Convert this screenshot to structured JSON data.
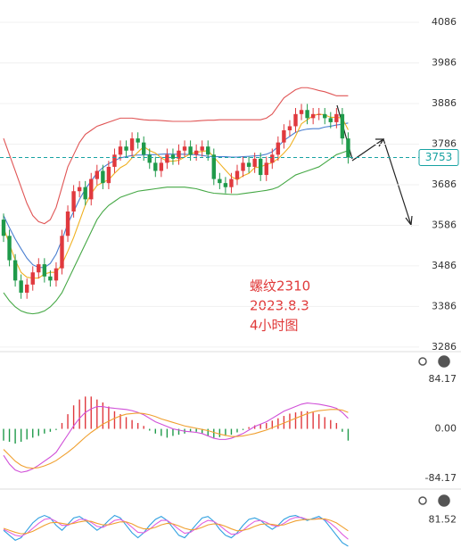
{
  "chart_data": [
    {
      "type": "candlestick",
      "annotations": [
        "螺纹2310",
        "2023.8.3",
        "4小时图"
      ],
      "last_price": 3753,
      "ylim": [
        3277,
        4141
      ],
      "yticks": [
        3286,
        3386,
        3486,
        3586,
        3686,
        3786,
        3886,
        3986,
        4086
      ],
      "grid": true,
      "up_color": "#e0393e",
      "down_color": "#1f9a4a",
      "open": [
        3600,
        3560,
        3500,
        3450,
        3420,
        3440,
        3470,
        3490,
        3460,
        3450,
        3480,
        3560,
        3620,
        3670,
        3680,
        3650,
        3700,
        3720,
        3690,
        3730,
        3760,
        3780,
        3770,
        3800,
        3790,
        3760,
        3740,
        3720,
        3740,
        3760,
        3750,
        3770,
        3780,
        3760,
        3770,
        3780,
        3760,
        3700,
        3690,
        3680,
        3700,
        3720,
        3740,
        3730,
        3750,
        3710,
        3740,
        3760,
        3790,
        3820,
        3830,
        3860,
        3870,
        3850,
        3860,
        3860,
        3850,
        3840,
        3860,
        3800
      ],
      "high": [
        3615,
        3575,
        3515,
        3465,
        3455,
        3485,
        3505,
        3505,
        3475,
        3495,
        3575,
        3635,
        3685,
        3695,
        3695,
        3715,
        3735,
        3735,
        3745,
        3775,
        3795,
        3795,
        3815,
        3815,
        3805,
        3775,
        3755,
        3755,
        3775,
        3775,
        3785,
        3795,
        3795,
        3785,
        3795,
        3795,
        3775,
        3715,
        3705,
        3715,
        3735,
        3755,
        3755,
        3765,
        3765,
        3755,
        3775,
        3805,
        3835,
        3845,
        3875,
        3885,
        3885,
        3875,
        3875,
        3875,
        3865,
        3875,
        3875,
        3815
      ],
      "low": [
        3545,
        3485,
        3435,
        3405,
        3405,
        3425,
        3455,
        3445,
        3435,
        3435,
        3465,
        3545,
        3605,
        3655,
        3635,
        3635,
        3685,
        3675,
        3675,
        3715,
        3745,
        3755,
        3755,
        3775,
        3745,
        3725,
        3705,
        3705,
        3725,
        3735,
        3735,
        3755,
        3745,
        3745,
        3755,
        3745,
        3685,
        3675,
        3665,
        3665,
        3685,
        3705,
        3715,
        3715,
        3695,
        3695,
        3725,
        3745,
        3775,
        3805,
        3815,
        3845,
        3835,
        3835,
        3845,
        3835,
        3825,
        3825,
        3785,
        3738
      ],
      "close": [
        3560,
        3500,
        3450,
        3420,
        3440,
        3470,
        3490,
        3460,
        3450,
        3480,
        3560,
        3620,
        3670,
        3680,
        3650,
        3700,
        3720,
        3690,
        3730,
        3760,
        3780,
        3770,
        3800,
        3790,
        3760,
        3740,
        3720,
        3740,
        3760,
        3750,
        3770,
        3780,
        3760,
        3770,
        3780,
        3760,
        3700,
        3690,
        3680,
        3700,
        3720,
        3740,
        3730,
        3750,
        3710,
        3740,
        3760,
        3790,
        3820,
        3830,
        3860,
        3870,
        3850,
        3860,
        3860,
        3850,
        3840,
        3860,
        3800,
        3753
      ],
      "series": [
        {
          "color": "#e05555",
          "values": [
            3800,
            3760,
            3720,
            3680,
            3640,
            3610,
            3595,
            3590,
            3600,
            3630,
            3680,
            3730,
            3760,
            3790,
            3810,
            3820,
            3830,
            3835,
            3840,
            3845,
            3850,
            3850,
            3850,
            3848,
            3846,
            3845,
            3845,
            3844,
            3843,
            3842,
            3842,
            3842,
            3842,
            3843,
            3844,
            3845,
            3845,
            3846,
            3846,
            3846,
            3846,
            3846,
            3846,
            3846,
            3846,
            3850,
            3860,
            3880,
            3900,
            3910,
            3920,
            3925,
            3925,
            3922,
            3918,
            3915,
            3910,
            3905,
            3905,
            3905
          ]
        },
        {
          "color": "#4a7fd0",
          "values": [
            3610,
            3580,
            3552,
            3528,
            3505,
            3489,
            3482,
            3482,
            3492,
            3515,
            3550,
            3590,
            3620,
            3650,
            3675,
            3695,
            3715,
            3728,
            3738,
            3745,
            3752,
            3755,
            3758,
            3759,
            3759,
            3760,
            3760,
            3761,
            3762,
            3761,
            3761,
            3761,
            3760,
            3760,
            3758,
            3756,
            3755,
            3755,
            3755,
            3754,
            3754,
            3755,
            3756,
            3757,
            3758,
            3761,
            3767,
            3780,
            3795,
            3805,
            3815,
            3820,
            3823,
            3824,
            3824,
            3828,
            3830,
            3833,
            3835,
            3838
          ]
        },
        {
          "color": "#45a845",
          "values": [
            3420,
            3400,
            3385,
            3375,
            3370,
            3368,
            3370,
            3375,
            3385,
            3400,
            3420,
            3450,
            3480,
            3510,
            3540,
            3570,
            3600,
            3620,
            3635,
            3645,
            3655,
            3660,
            3665,
            3670,
            3672,
            3674,
            3676,
            3678,
            3680,
            3680,
            3680,
            3680,
            3678,
            3676,
            3672,
            3668,
            3665,
            3664,
            3663,
            3662,
            3662,
            3664,
            3666,
            3668,
            3670,
            3672,
            3675,
            3680,
            3690,
            3700,
            3710,
            3715,
            3720,
            3725,
            3730,
            3740,
            3750,
            3760,
            3765,
            3770
          ]
        },
        {
          "color": "#f0b020",
          "values": [
            3580,
            3540,
            3500,
            3470,
            3458,
            3456,
            3456,
            3466,
            3470,
            3470,
            3490,
            3522,
            3556,
            3596,
            3636,
            3664,
            3684,
            3692,
            3698,
            3714,
            3728,
            3736,
            3752,
            3766,
            3780,
            3770,
            3764,
            3752,
            3744,
            3744,
            3746,
            3754,
            3762,
            3766,
            3768,
            3770,
            3754,
            3738,
            3722,
            3706,
            3698,
            3708,
            3714,
            3728,
            3730,
            3736,
            3740,
            3750,
            3764,
            3780,
            3806,
            3836,
            3846,
            3856,
            3860,
            3858,
            3852,
            3852,
            3850,
            3821
          ]
        }
      ]
    },
    {
      "type": "macd",
      "ylim": [
        -101,
        130
      ],
      "yticks": [
        -84.17,
        {
          "value": 0,
          "label": "0.00"
        },
        84.17
      ],
      "up_color": "#e0393e",
      "down_color": "#1f9a4a",
      "values": [
        -20,
        -22,
        -25,
        -22,
        -18,
        -15,
        -12,
        -8,
        -5,
        -2,
        10,
        25,
        40,
        50,
        55,
        55,
        50,
        45,
        38,
        30,
        25,
        20,
        15,
        10,
        5,
        -3,
        -8,
        -12,
        -15,
        -12,
        -10,
        -8,
        -5,
        -5,
        -8,
        -12,
        -15,
        -14,
        -12,
        -10,
        -6,
        -2,
        3,
        6,
        8,
        10,
        14,
        18,
        22,
        26,
        28,
        30,
        30,
        28,
        25,
        20,
        15,
        10,
        -5,
        -20
      ],
      "series": [
        {
          "color": "#d050d8",
          "values": [
            -45,
            -60,
            -70,
            -74,
            -72,
            -68,
            -62,
            -55,
            -48,
            -40,
            -25,
            -10,
            5,
            18,
            28,
            34,
            38,
            38,
            36,
            35,
            34,
            33,
            31,
            28,
            24,
            18,
            12,
            8,
            4,
            0,
            -2,
            -4,
            -5,
            -6,
            -8,
            -12,
            -16,
            -18,
            -18,
            -16,
            -12,
            -8,
            -2,
            4,
            8,
            12,
            18,
            24,
            30,
            34,
            38,
            42,
            44,
            43,
            42,
            40,
            38,
            35,
            28,
            18
          ]
        },
        {
          "color": "#f0a030",
          "values": [
            -35,
            -45,
            -55,
            -62,
            -66,
            -67,
            -66,
            -63,
            -59,
            -54,
            -47,
            -40,
            -32,
            -23,
            -14,
            -6,
            1,
            8,
            13,
            18,
            22,
            25,
            26,
            27,
            26,
            24,
            21,
            17,
            14,
            11,
            8,
            5,
            3,
            1,
            -1,
            -3,
            -6,
            -9,
            -11,
            -13,
            -13,
            -12,
            -10,
            -8,
            -5,
            -2,
            2,
            6,
            10,
            14,
            18,
            22,
            26,
            29,
            31,
            32,
            33,
            33,
            32,
            28
          ]
        }
      ]
    },
    {
      "type": "line",
      "ylim": [
        10,
        100
      ],
      "yticks": [
        81.52
      ],
      "series": [
        {
          "color": "#2fa0e0",
          "values": [
            60,
            50,
            40,
            45,
            60,
            75,
            85,
            90,
            85,
            70,
            60,
            72,
            85,
            88,
            80,
            70,
            60,
            68,
            80,
            90,
            85,
            70,
            55,
            45,
            55,
            70,
            82,
            88,
            80,
            65,
            50,
            45,
            58,
            72,
            85,
            88,
            78,
            62,
            50,
            45,
            55,
            70,
            82,
            85,
            80,
            70,
            62,
            70,
            82,
            88,
            90,
            85,
            80,
            84,
            88,
            80,
            65,
            50,
            35,
            28
          ]
        },
        {
          "color": "#e060e0",
          "values": [
            62,
            56,
            50,
            48,
            54,
            64,
            74,
            82,
            84,
            78,
            70,
            70,
            76,
            82,
            82,
            76,
            68,
            66,
            72,
            80,
            82,
            76,
            66,
            56,
            55,
            62,
            72,
            80,
            80,
            72,
            62,
            54,
            56,
            64,
            74,
            80,
            78,
            70,
            60,
            52,
            53,
            60,
            70,
            78,
            80,
            76,
            70,
            68,
            74,
            82,
            86,
            86,
            82,
            82,
            84,
            82,
            74,
            64,
            52,
            42
          ]
        },
        {
          "color": "#f0a030",
          "values": [
            64,
            60,
            56,
            53,
            54,
            58,
            64,
            70,
            75,
            76,
            74,
            72,
            74,
            77,
            79,
            78,
            74,
            71,
            71,
            74,
            77,
            77,
            73,
            67,
            63,
            63,
            66,
            71,
            74,
            73,
            69,
            64,
            61,
            62,
            66,
            71,
            73,
            72,
            68,
            63,
            59,
            60,
            63,
            68,
            72,
            73,
            72,
            70,
            71,
            75,
            79,
            81,
            82,
            82,
            83,
            83,
            80,
            75,
            67,
            59
          ]
        }
      ]
    }
  ]
}
